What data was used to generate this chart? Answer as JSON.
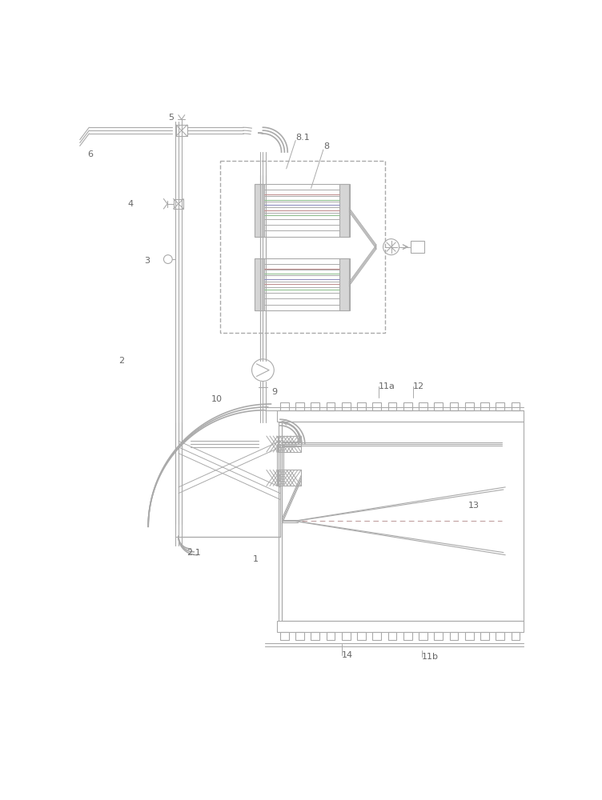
{
  "bg_color": "#ffffff",
  "lc": "#aaaaaa",
  "lc_dark": "#888888",
  "red_line": "#c09090",
  "green_line": "#90c090",
  "blue_line": "#9090c0",
  "label_color": "#666666",
  "lw": 1.2,
  "lw_thin": 0.8,
  "fig_width": 7.52,
  "fig_height": 10.0
}
